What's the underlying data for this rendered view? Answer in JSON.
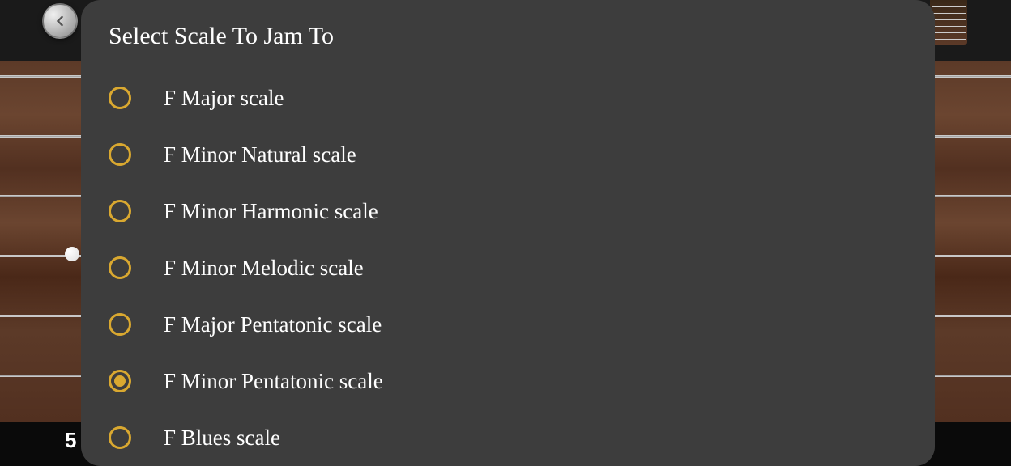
{
  "header": {
    "fret_number": "5"
  },
  "modal": {
    "title": "Select Scale To Jam To",
    "accent_color": "#d9a830",
    "background_color": "#3d3d3d",
    "text_color": "#ffffff",
    "options": [
      {
        "label": "F Major scale",
        "selected": false
      },
      {
        "label": "F Minor Natural scale",
        "selected": false
      },
      {
        "label": "F Minor Harmonic scale",
        "selected": false
      },
      {
        "label": "F Minor Melodic scale",
        "selected": false
      },
      {
        "label": "F Major Pentatonic scale",
        "selected": false
      },
      {
        "label": "F Minor Pentatonic scale",
        "selected": true
      },
      {
        "label": "F Blues scale",
        "selected": false
      }
    ]
  }
}
